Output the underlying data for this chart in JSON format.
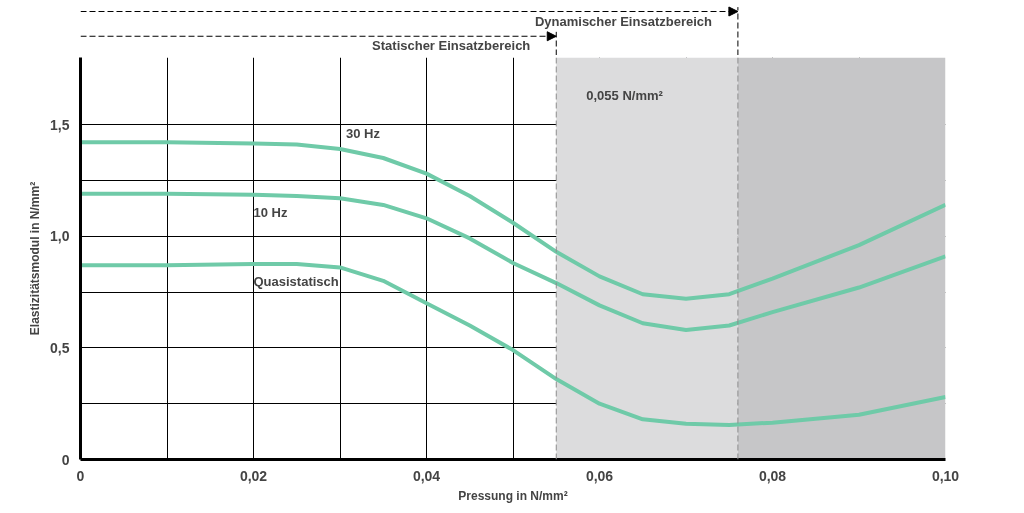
{
  "chart_data": {
    "type": "line",
    "xlabel": "Pressung in N/mm²",
    "ylabel": "Elastizitätsmodul in N/mm²",
    "xlim": [
      0,
      0.1
    ],
    "ylim": [
      0,
      1.8
    ],
    "xticks": [
      0,
      {
        "value": 0.01,
        "label": null
      },
      {
        "value": 0.02,
        "label": "0,02"
      },
      {
        "value": 0.03,
        "label": null
      },
      {
        "value": 0.04,
        "label": "0,04"
      },
      {
        "value": 0.05,
        "label": null
      },
      {
        "value": 0.06,
        "label": "0,06"
      },
      {
        "value": 0.07,
        "label": null
      },
      {
        "value": 0.08,
        "label": "0,08"
      },
      {
        "value": 0.09,
        "label": null
      },
      {
        "value": 0.1,
        "label": "0,10"
      }
    ],
    "yticks": [
      0,
      {
        "value": 0.25,
        "label": null
      },
      {
        "value": 0.5,
        "label": "0,5"
      },
      {
        "value": 0.75,
        "label": null
      },
      {
        "value": 1.0,
        "label": "1,0"
      },
      {
        "value": 1.25,
        "label": null
      },
      {
        "value": 1.5,
        "label": "1,5"
      }
    ],
    "grid": true,
    "marker": "none",
    "line_style": "solid",
    "x": [
      0,
      0.01,
      0.02,
      0.025,
      0.03,
      0.035,
      0.04,
      0.045,
      0.05,
      0.055,
      0.06,
      0.065,
      0.07,
      0.075,
      0.08,
      0.09,
      0.1
    ],
    "series": [
      {
        "name": "30 Hz",
        "color": "#6fcaa8",
        "values": [
          1.42,
          1.42,
          1.415,
          1.41,
          1.39,
          1.35,
          1.28,
          1.18,
          1.06,
          0.93,
          0.82,
          0.74,
          0.72,
          0.74,
          0.81,
          0.96,
          1.14
        ]
      },
      {
        "name": "10 Hz",
        "color": "#6fcaa8",
        "values": [
          1.19,
          1.19,
          1.185,
          1.18,
          1.17,
          1.14,
          1.08,
          0.99,
          0.88,
          0.79,
          0.69,
          0.61,
          0.58,
          0.6,
          0.66,
          0.77,
          0.91
        ]
      },
      {
        "name": "Quasistatisch",
        "color": "#6fcaa8",
        "values": [
          0.87,
          0.87,
          0.875,
          0.875,
          0.86,
          0.8,
          0.7,
          0.6,
          0.49,
          0.36,
          0.25,
          0.18,
          0.16,
          0.155,
          0.165,
          0.2,
          0.28
        ]
      }
    ],
    "bands": [
      {
        "axis": "x",
        "from": 0.055,
        "to": 0.076,
        "color": "#dcdcdd"
      },
      {
        "axis": "x",
        "from": 0.076,
        "to": 0.1,
        "color": "#c6c6c8"
      }
    ],
    "ref_lines": [
      {
        "axis": "x",
        "value": 0.055,
        "label": "Statischer Einsatzbereich",
        "line_style": "dashed"
      },
      {
        "axis": "x",
        "value": 0.076,
        "label": "Dynamischer Einsatzbereich",
        "line_style": "dashed"
      }
    ],
    "annotations": [
      "0,055 N/mm²"
    ]
  }
}
